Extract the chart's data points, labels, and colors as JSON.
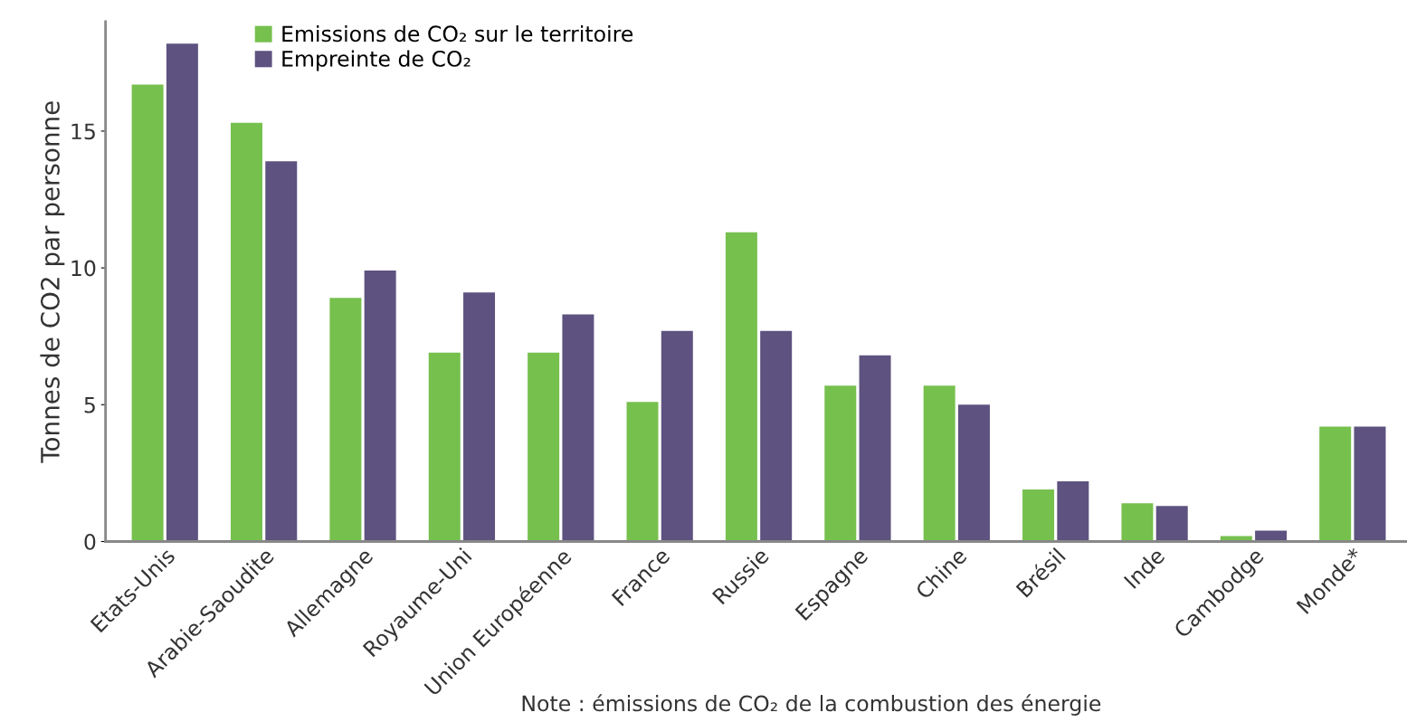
{
  "chart_data": {
    "type": "bar",
    "ylabel": "Tonnes de CO2 par personne",
    "categories": [
      "Etats-Unis",
      "Arabie-Saoudite",
      "Allemagne",
      "Royaume-Uni",
      "Union Européenne",
      "France",
      "Russie",
      "Espagne",
      "Chine",
      "Brésil",
      "Inde",
      "Cambodge",
      "Monde*"
    ],
    "series": [
      {
        "name": "Emissions de CO₂ sur le territoire",
        "color": "#76c04e",
        "values": [
          16.7,
          15.3,
          8.9,
          6.9,
          6.9,
          5.1,
          11.3,
          5.7,
          5.7,
          1.9,
          1.4,
          0.2,
          4.2
        ]
      },
      {
        "name": "Empreinte de CO₂",
        "color": "#5e5280",
        "values": [
          18.2,
          13.9,
          9.9,
          9.1,
          8.3,
          7.7,
          7.7,
          6.8,
          5.0,
          2.2,
          1.3,
          0.4,
          4.2
        ]
      }
    ],
    "ylim": [
      0,
      19
    ],
    "yticks": [
      0,
      5,
      10,
      15
    ],
    "grid": false,
    "legend": "top left",
    "annotations": [
      "Note : émissions de CO₂ de la combustion des énergie"
    ]
  }
}
